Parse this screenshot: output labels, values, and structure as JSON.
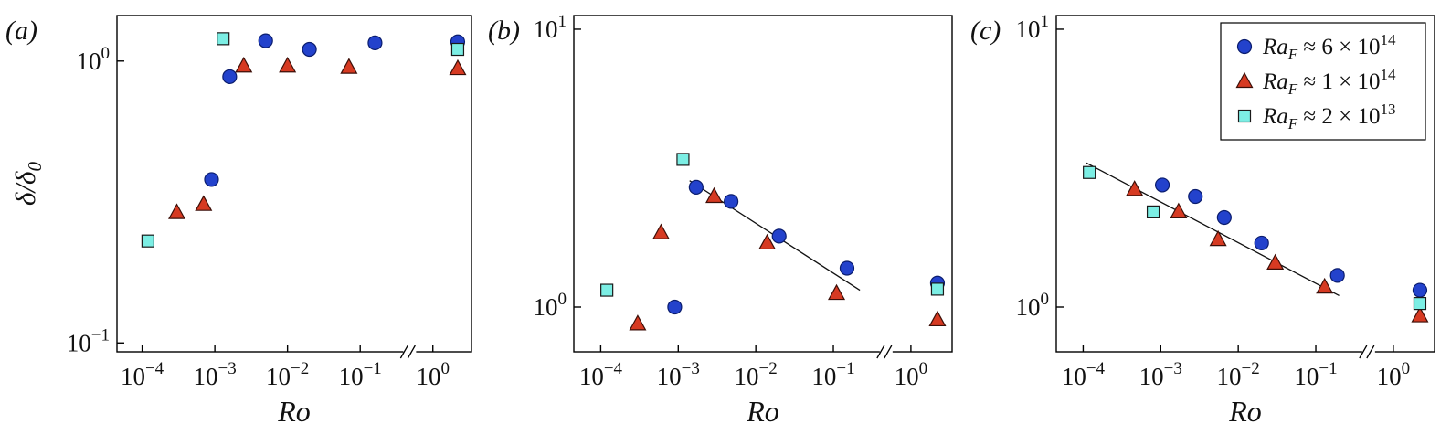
{
  "figure": {
    "background": "#ffffff",
    "markers": {
      "circle": {
        "fill": "#2342cc",
        "edge": "#0b1d6e"
      },
      "triangle": {
        "fill": "#d63a22",
        "edge": "#3c0f08"
      },
      "square": {
        "fill": "#7ceee4",
        "edge": "#1a1a1a"
      }
    }
  },
  "chart_data": [
    {
      "type": "scatter",
      "panel_label": "(a)",
      "xlabel": "Ro",
      "ylabel": {
        "main": "δ/δ",
        "sub": "0",
        "text": "δ/δ₀"
      },
      "xscale": "log",
      "yscale": "log",
      "xlim": [
        4.5e-05,
        3.4
      ],
      "ylim": [
        0.093,
        1.45
      ],
      "xticks": [
        0.0001,
        0.001,
        0.01,
        0.1,
        1
      ],
      "yticks": [
        0.1,
        1
      ],
      "axis_break_x": 0.48,
      "grid": false,
      "series": [
        {
          "name": "Ra_F ≈ 6 × 10^14",
          "marker": "circle",
          "points": [
            [
              0.0009,
              0.38
            ],
            [
              0.0016,
              0.88
            ],
            [
              0.005,
              1.18
            ],
            [
              0.02,
              1.1
            ],
            [
              0.16,
              1.16
            ],
            [
              2.2,
              1.17
            ]
          ]
        },
        {
          "name": "Ra_F ≈ 1 × 10^14",
          "marker": "triangle",
          "points": [
            [
              0.0003,
              0.29
            ],
            [
              0.0007,
              0.31
            ],
            [
              0.0025,
              0.96
            ],
            [
              0.01,
              0.96
            ],
            [
              0.07,
              0.95
            ],
            [
              2.2,
              0.94
            ]
          ]
        },
        {
          "name": "Ra_F ≈ 2 × 10^13",
          "marker": "square",
          "points": [
            [
              0.00012,
              0.23
            ],
            [
              0.0013,
              1.2
            ],
            [
              2.2,
              1.1
            ]
          ]
        }
      ]
    },
    {
      "type": "scatter",
      "panel_label": "(b)",
      "xlabel": "Ro",
      "xscale": "log",
      "yscale": "log",
      "xlim": [
        4.5e-05,
        3.4
      ],
      "ylim": [
        0.69,
        11.2
      ],
      "xticks": [
        0.0001,
        0.001,
        0.01,
        0.1,
        1
      ],
      "yticks": [
        1,
        10
      ],
      "axis_break_x": 0.48,
      "grid": false,
      "fit_line": {
        "x1": 0.0014,
        "y1": 2.85,
        "x2": 0.22,
        "y2": 1.15
      },
      "series": [
        {
          "name": "Ra_F ≈ 6 × 10^14",
          "marker": "circle",
          "points": [
            [
              0.0009,
              1.0
            ],
            [
              0.0017,
              2.7
            ],
            [
              0.0048,
              2.4
            ],
            [
              0.02,
              1.8
            ],
            [
              0.15,
              1.38
            ],
            [
              2.2,
              1.22
            ]
          ]
        },
        {
          "name": "Ra_F ≈ 1 × 10^14",
          "marker": "triangle",
          "points": [
            [
              0.0003,
              0.87
            ],
            [
              0.0006,
              1.85
            ],
            [
              0.0029,
              2.5
            ],
            [
              0.014,
              1.7
            ],
            [
              0.11,
              1.12
            ],
            [
              2.2,
              0.9
            ]
          ]
        },
        {
          "name": "Ra_F ≈ 2 × 10^13",
          "marker": "square",
          "points": [
            [
              0.00012,
              1.15
            ],
            [
              0.00115,
              3.4
            ],
            [
              2.2,
              1.16
            ]
          ]
        }
      ]
    },
    {
      "type": "scatter",
      "panel_label": "(c)",
      "xlabel": "Ro",
      "xscale": "log",
      "yscale": "log",
      "xlim": [
        4.5e-05,
        3.4
      ],
      "ylim": [
        0.69,
        11.2
      ],
      "xticks": [
        0.0001,
        0.001,
        0.01,
        0.1,
        1
      ],
      "yticks": [
        1,
        10
      ],
      "axis_break_x": 0.48,
      "grid": false,
      "fit_line": {
        "x1": 0.00011,
        "y1": 3.3,
        "x2": 0.2,
        "y2": 1.1
      },
      "series": [
        {
          "name": "Ra_F ≈ 6 × 10^14",
          "marker": "circle",
          "points": [
            [
              0.00105,
              2.75
            ],
            [
              0.0028,
              2.5
            ],
            [
              0.0066,
              2.1
            ],
            [
              0.02,
              1.7
            ],
            [
              0.19,
              1.3
            ],
            [
              2.2,
              1.15
            ]
          ]
        },
        {
          "name": "Ra_F ≈ 1 × 10^14",
          "marker": "triangle",
          "points": [
            [
              0.00046,
              2.65
            ],
            [
              0.0017,
              2.2
            ],
            [
              0.0055,
              1.75
            ],
            [
              0.03,
              1.44
            ],
            [
              0.13,
              1.18
            ],
            [
              2.2,
              0.93
            ]
          ]
        },
        {
          "name": "Ra_F ≈ 2 × 10^13",
          "marker": "square",
          "points": [
            [
              0.00012,
              3.05
            ],
            [
              0.0008,
              2.2
            ],
            [
              2.2,
              1.03
            ]
          ]
        }
      ],
      "legend": {
        "entries": [
          {
            "symbol": "circle",
            "label": "Ra_F ≈ 6 × 10^14",
            "coeff": "6",
            "exponent": "14"
          },
          {
            "symbol": "triangle",
            "label": "Ra_F ≈ 1 × 10^14",
            "coeff": "1",
            "exponent": "14"
          },
          {
            "symbol": "square",
            "label": "Ra_F ≈ 2 × 10^13",
            "coeff": "2",
            "exponent": "13"
          }
        ]
      }
    }
  ]
}
